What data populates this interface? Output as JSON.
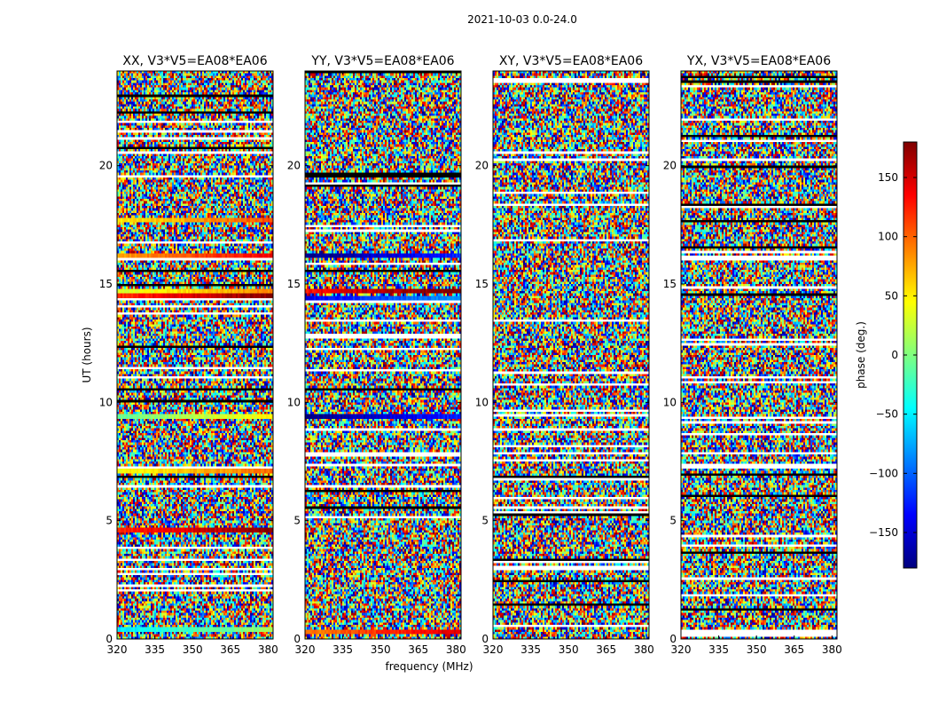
{
  "figure": {
    "suptitle": "2021-10-03 0.0-24.0",
    "xlabel": "frequency (MHz)",
    "ylabel": "UT (hours)"
  },
  "colorbar": {
    "label": "phase (deg.)",
    "range": [
      -180,
      180
    ],
    "ticks": [
      150,
      100,
      50,
      0,
      -50,
      -100,
      -150
    ],
    "tick_labels": [
      "150",
      "100",
      "50",
      "0",
      "−50",
      "−100",
      "−150"
    ],
    "colormap": [
      "#00007f",
      "#0000ff",
      "#007fff",
      "#00ffff",
      "#7fff7f",
      "#ffff00",
      "#ff7f00",
      "#ff0000",
      "#7f0000"
    ]
  },
  "chart_data": [
    {
      "type": "heatmap",
      "title": "XX, V3*V5=EA08*EA06",
      "x_range_mhz": [
        320,
        382
      ],
      "y_range_hours": [
        0,
        24
      ],
      "xticks": [
        320,
        335,
        350,
        365,
        380
      ],
      "yticks": [
        0,
        5,
        10,
        15,
        20
      ],
      "value": "phase (deg.)",
      "smooth_bands": [
        {
          "ut": 9.5,
          "phase_deg": 20
        },
        {
          "ut": 14.8,
          "phase_deg": 60
        },
        {
          "ut": 14.6,
          "phase_deg": 150
        },
        {
          "ut": 16.3,
          "phase_deg": 110
        },
        {
          "ut": 17.8,
          "phase_deg": 80
        },
        {
          "ut": 7.2,
          "phase_deg": 70
        },
        {
          "ut": 4.7,
          "phase_deg": 150
        },
        {
          "ut": 0.55,
          "phase_deg": -20
        }
      ]
    },
    {
      "type": "heatmap",
      "title": "YY, V3*V5=EA08*EA06",
      "x_range_mhz": [
        320,
        382
      ],
      "y_range_hours": [
        0,
        24
      ],
      "xticks": [
        320,
        335,
        350,
        365,
        380
      ],
      "yticks": [
        0,
        5,
        10,
        15,
        20
      ],
      "value": "phase (deg.)",
      "smooth_bands": [
        {
          "ut": 9.5,
          "phase_deg": -150
        },
        {
          "ut": 16.3,
          "phase_deg": -150
        },
        {
          "ut": 14.8,
          "phase_deg": 160
        },
        {
          "ut": 14.5,
          "phase_deg": -110
        },
        {
          "ut": 0.4,
          "phase_deg": 120
        }
      ]
    },
    {
      "type": "heatmap",
      "title": "XY, V3*V5=EA08*EA06",
      "x_range_mhz": [
        320,
        382
      ],
      "y_range_hours": [
        0,
        24
      ],
      "xticks": [
        320,
        335,
        350,
        365,
        380
      ],
      "yticks": [
        0,
        5,
        10,
        15,
        20
      ],
      "value": "phase (deg.)",
      "smooth_bands": []
    },
    {
      "type": "heatmap",
      "title": "YX, V3*V5=EA08*EA06",
      "x_range_mhz": [
        320,
        382
      ],
      "y_range_hours": [
        0,
        24
      ],
      "xticks": [
        320,
        335,
        350,
        365,
        380
      ],
      "yticks": [
        0,
        5,
        10,
        15,
        20
      ],
      "value": "phase (deg.)",
      "smooth_bands": []
    }
  ]
}
